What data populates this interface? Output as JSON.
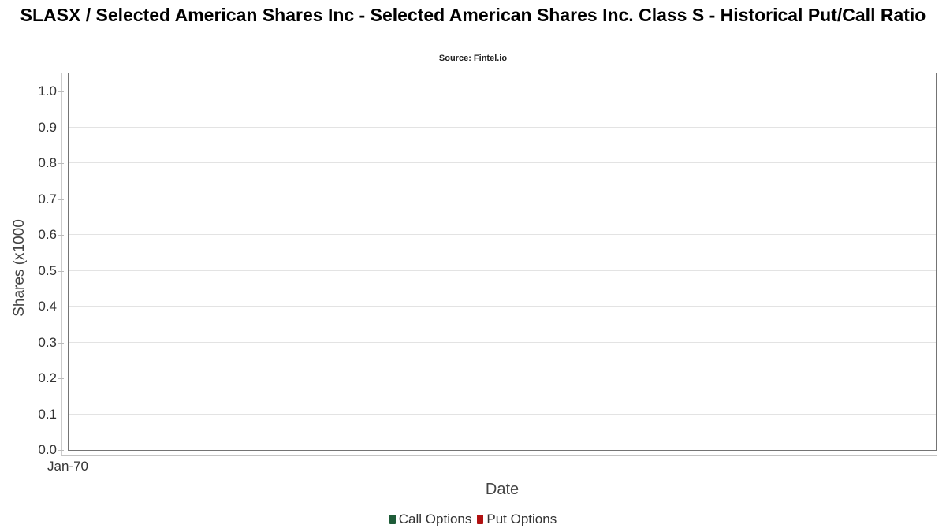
{
  "title": "SLASX / Selected American Shares Inc - Selected American Shares Inc. Class S - Historical Put/Call Ratio",
  "subtitle": "Source: Fintel.io",
  "chart_data": {
    "type": "line",
    "title": "SLASX / Selected American Shares Inc - Selected American Shares Inc. Class S - Historical Put/Call Ratio",
    "subtitle": "Source: Fintel.io",
    "xlabel": "Date",
    "ylabel": "Shares (x1000",
    "x_ticks": [
      "Jan-70"
    ],
    "y_ticks": [
      1.0,
      0.9,
      0.8,
      0.7,
      0.6,
      0.5,
      0.4,
      0.3,
      0.2,
      0.1,
      0.0
    ],
    "ylim": [
      0,
      1.05
    ],
    "grid": true,
    "legend_position": "bottom",
    "plot_empty": true,
    "series": [
      {
        "name": "Call Options",
        "color": "#1e5c38",
        "values": []
      },
      {
        "name": "Put Options",
        "color": "#b11111",
        "values": []
      }
    ]
  }
}
